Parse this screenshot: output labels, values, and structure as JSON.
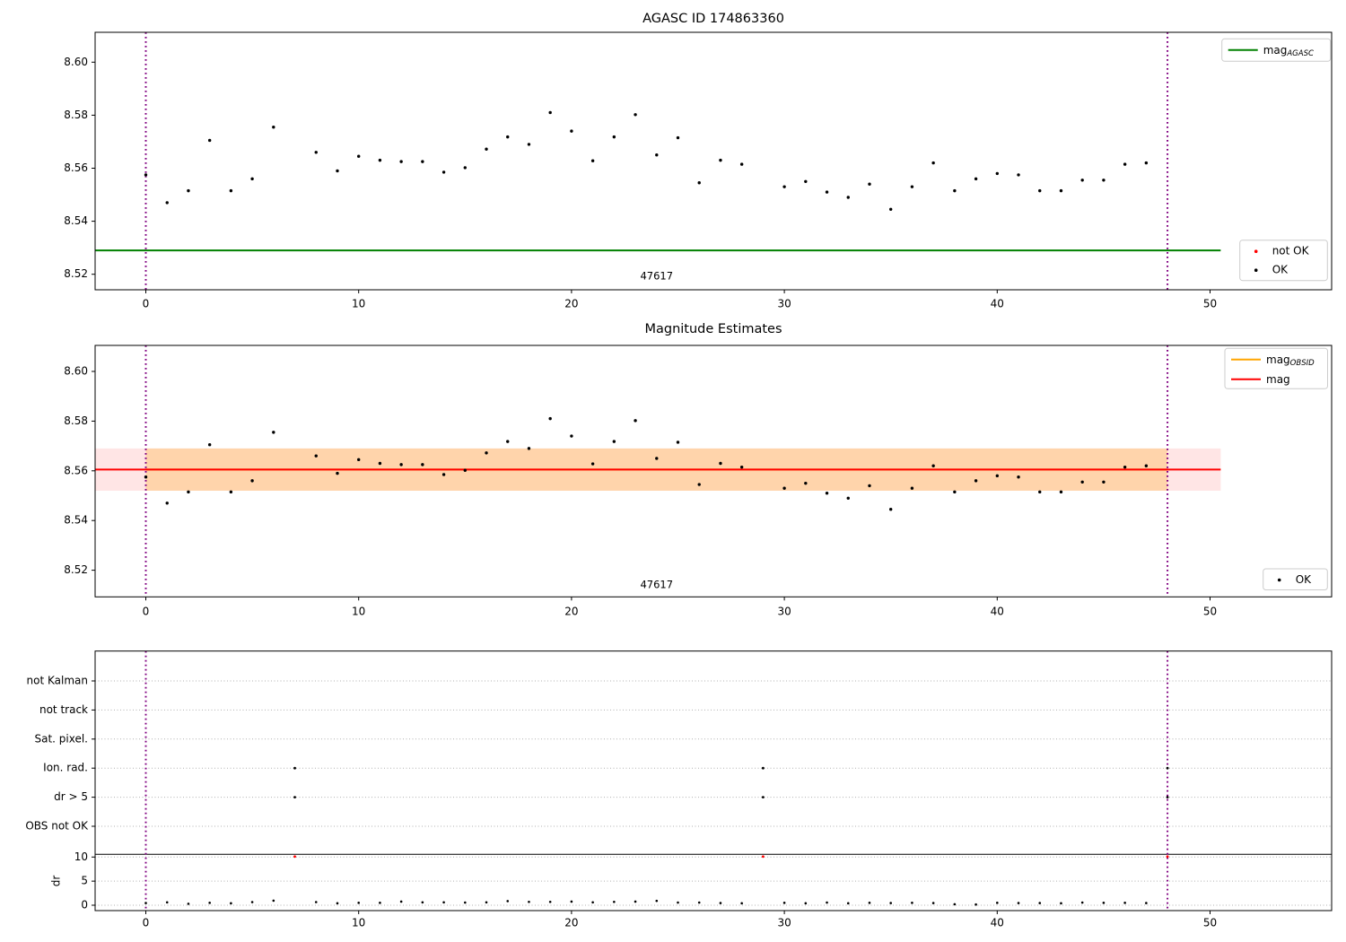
{
  "figure": {
    "colors": {
      "mag_agasc_line": "#008000",
      "mag_line": "#ff0000",
      "mag_obsid_line": "#ffa500",
      "obsid_boundary": "#800080",
      "ok_marker": "#000000",
      "not_ok_marker": "#ff0000",
      "grid": "#b0b0b0",
      "mag_band": "rgba(255,0,0,0.10)",
      "obsid_band": "rgba(255,165,0,0.25)",
      "legend_border": "#cccccc"
    },
    "mag_points": [
      [
        0,
        8.5575
      ],
      [
        1,
        8.547
      ],
      [
        2,
        8.5515
      ],
      [
        3,
        8.5705
      ],
      [
        4,
        8.5515
      ],
      [
        5,
        8.556
      ],
      [
        6,
        8.5755
      ],
      [
        8,
        8.566
      ],
      [
        9,
        8.559
      ],
      [
        10,
        8.5645
      ],
      [
        11,
        8.563
      ],
      [
        12,
        8.5625
      ],
      [
        13,
        8.5625
      ],
      [
        14,
        8.5585
      ],
      [
        15,
        8.5602
      ],
      [
        16,
        8.5672
      ],
      [
        17,
        8.5718
      ],
      [
        18,
        8.569
      ],
      [
        19,
        8.581
      ],
      [
        20,
        8.574
      ],
      [
        21,
        8.5628
      ],
      [
        22,
        8.5718
      ],
      [
        23,
        8.5802
      ],
      [
        24,
        8.565
      ],
      [
        25,
        8.5715
      ],
      [
        26,
        8.5545
      ],
      [
        27,
        8.563
      ],
      [
        28,
        8.5615
      ],
      [
        30,
        8.553
      ],
      [
        31,
        8.555
      ],
      [
        32,
        8.551
      ],
      [
        33,
        8.549
      ],
      [
        34,
        8.554
      ],
      [
        35,
        8.5445
      ],
      [
        36,
        8.553
      ],
      [
        37,
        8.562
      ],
      [
        38,
        8.5515
      ],
      [
        39,
        8.556
      ],
      [
        40,
        8.558
      ],
      [
        41,
        8.5575
      ],
      [
        42,
        8.5515
      ],
      [
        43,
        8.5515
      ],
      [
        44,
        8.5555
      ],
      [
        45,
        8.5555
      ],
      [
        46,
        8.5615
      ],
      [
        47,
        8.562
      ]
    ],
    "chart_data": [
      {
        "type": "scatter",
        "title": "AGASC ID 174863360",
        "xlim": [
          -2.4,
          55.7
        ],
        "ylim": [
          8.514,
          8.611
        ],
        "xticks": [
          0,
          10,
          20,
          30,
          40,
          50
        ],
        "yticks": [
          8.52,
          8.54,
          8.56,
          8.58,
          8.6
        ],
        "grid": false,
        "obsid_boundaries": [
          0,
          48
        ],
        "obsid_annotation": {
          "text": "47617",
          "x": 24
        },
        "hlines": [
          {
            "name": "mag_AGASC",
            "y": 8.529,
            "x_start": -2.4,
            "x_end": 50.5,
            "color_key": "mag_agasc_line"
          }
        ],
        "legend_lines": [
          {
            "label": "mag",
            "sub": "AGASC",
            "color_key": "mag_agasc_line"
          }
        ],
        "legend_markers": [
          {
            "label": "not OK",
            "color_key": "not_ok_marker"
          },
          {
            "label": "OK",
            "color_key": "ok_marker"
          }
        ],
        "not_ok_points": []
      },
      {
        "type": "scatter",
        "title": "Magnitude Estimates",
        "xlim": [
          -2.4,
          55.7
        ],
        "ylim": [
          8.509,
          8.61
        ],
        "xticks": [
          0,
          10,
          20,
          30,
          40,
          50
        ],
        "yticks": [
          8.52,
          8.54,
          8.56,
          8.58,
          8.6
        ],
        "grid": false,
        "obsid_boundaries": [
          0,
          48
        ],
        "obsid_annotation": {
          "text": "47617",
          "x": 24
        },
        "bands": [
          {
            "name": "mag_err_band",
            "y_low": 8.552,
            "y_high": 8.569,
            "x_start": -2.4,
            "x_end": 50.5,
            "color_key": "mag_band"
          },
          {
            "name": "mag_obsid_band",
            "y_low": 8.552,
            "y_high": 8.569,
            "x_start": 0,
            "x_end": 48,
            "color_key": "obsid_band"
          }
        ],
        "hlines": [
          {
            "name": "mag_OBSID",
            "y": 8.5605,
            "x_start": 0,
            "x_end": 48,
            "color_key": "mag_obsid_line"
          },
          {
            "name": "mag",
            "y": 8.5605,
            "x_start": -2.4,
            "x_end": 50.5,
            "color_key": "mag_line"
          }
        ],
        "legend_lines": [
          {
            "label": "mag",
            "sub": "OBSID",
            "color_key": "mag_obsid_line"
          },
          {
            "label": "mag",
            "sub": "",
            "color_key": "mag_line"
          }
        ],
        "legend_markers": [
          {
            "label": "OK",
            "color_key": "ok_marker"
          }
        ],
        "not_ok_points": []
      },
      {
        "type": "scatter",
        "title": "",
        "xlim": [
          -2.4,
          55.7
        ],
        "xticks": [
          0,
          10,
          20,
          30,
          40,
          50
        ],
        "grid": true,
        "obsid_boundaries": [
          0,
          48
        ],
        "flag_categories": [
          "not Kalman",
          "not track",
          "Sat. pixel.",
          "Ion. rad.",
          "dr > 5",
          "OBS not OK"
        ],
        "flag_points": [
          {
            "category": "Ion. rad.",
            "x": [
              7,
              29,
              48
            ]
          },
          {
            "category": "dr > 5",
            "x": [
              7,
              29,
              48
            ]
          }
        ],
        "dr_axis_label": "dr",
        "dr_ticks": [
          10,
          5,
          0
        ],
        "dr_ok_points": [
          [
            0,
            0.45
          ],
          [
            1,
            0.6
          ],
          [
            2,
            0.3
          ],
          [
            3,
            0.5
          ],
          [
            4,
            0.4
          ],
          [
            5,
            0.65
          ],
          [
            6,
            0.95
          ],
          [
            8,
            0.65
          ],
          [
            9,
            0.4
          ],
          [
            10,
            0.5
          ],
          [
            11,
            0.5
          ],
          [
            12,
            0.75
          ],
          [
            13,
            0.6
          ],
          [
            14,
            0.6
          ],
          [
            15,
            0.55
          ],
          [
            16,
            0.6
          ],
          [
            17,
            0.85
          ],
          [
            18,
            0.7
          ],
          [
            19,
            0.7
          ],
          [
            20,
            0.75
          ],
          [
            21,
            0.6
          ],
          [
            22,
            0.7
          ],
          [
            23,
            0.75
          ],
          [
            24,
            0.9
          ],
          [
            25,
            0.55
          ],
          [
            26,
            0.55
          ],
          [
            27,
            0.45
          ],
          [
            28,
            0.4
          ],
          [
            30,
            0.5
          ],
          [
            31,
            0.4
          ],
          [
            32,
            0.55
          ],
          [
            33,
            0.4
          ],
          [
            34,
            0.5
          ],
          [
            35,
            0.45
          ],
          [
            36,
            0.5
          ],
          [
            37,
            0.45
          ],
          [
            38,
            0.2
          ],
          [
            39,
            0.15
          ],
          [
            40,
            0.5
          ],
          [
            41,
            0.45
          ],
          [
            42,
            0.45
          ],
          [
            43,
            0.4
          ],
          [
            44,
            0.55
          ],
          [
            45,
            0.5
          ],
          [
            46,
            0.5
          ],
          [
            47,
            0.45
          ]
        ],
        "dr_not_ok_points": [
          [
            7,
            10
          ],
          [
            29,
            10
          ],
          [
            48,
            10
          ]
        ]
      }
    ]
  }
}
